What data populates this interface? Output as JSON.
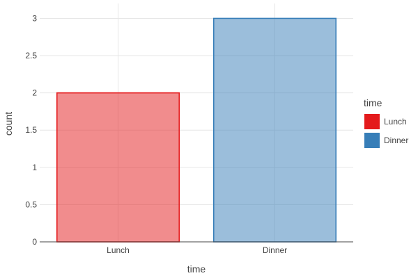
{
  "chart_data": {
    "type": "bar",
    "categories": [
      "Lunch",
      "Dinner"
    ],
    "values": [
      2,
      3
    ],
    "xlabel": "time",
    "ylabel": "count",
    "ylim": [
      0,
      3.2
    ],
    "yticks": [
      0,
      0.5,
      1,
      1.5,
      2,
      2.5,
      3
    ],
    "ytick_labels": [
      "0",
      "0.5",
      "1",
      "1.5",
      "2",
      "2.5",
      "3"
    ],
    "grid": true,
    "legend": {
      "title": "time",
      "placement": "right",
      "items": [
        {
          "label": "Lunch",
          "color": "#e41a1c"
        },
        {
          "label": "Dinner",
          "color": "#377eb8"
        }
      ]
    },
    "colors": {
      "Lunch": "#e41a1c",
      "Dinner": "#377eb8"
    },
    "bar_opacity": 0.5
  }
}
